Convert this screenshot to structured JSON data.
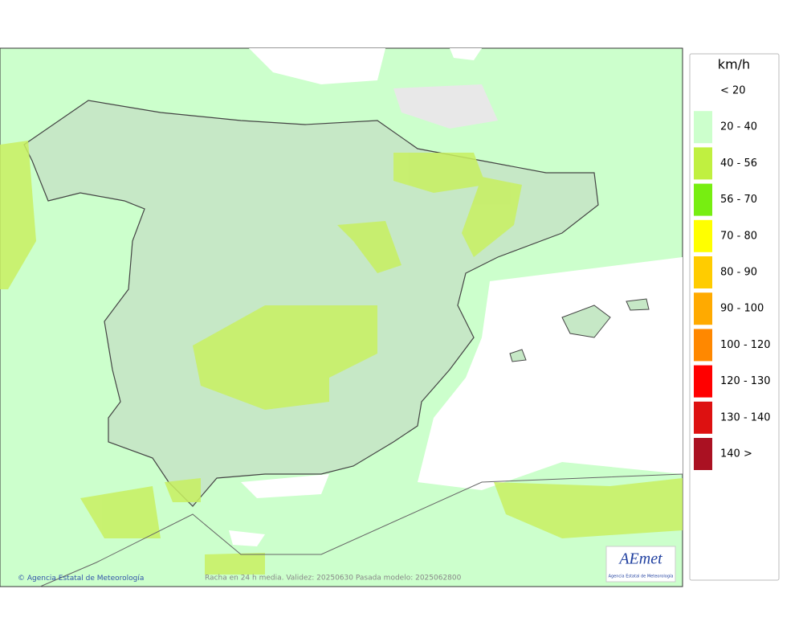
{
  "legend": {
    "title": "km/h",
    "items": [
      {
        "label": "< 20",
        "color": "#ffffff"
      },
      {
        "label": "20 - 40",
        "color": "#ccffcc"
      },
      {
        "label": "40 - 56",
        "color": "#c0f040"
      },
      {
        "label": "56 - 70",
        "color": "#77ee11"
      },
      {
        "label": "70 - 80",
        "color": "#ffff00"
      },
      {
        "label": "80 - 90",
        "color": "#ffcc00"
      },
      {
        "label": "90 - 100",
        "color": "#ffaa00"
      },
      {
        "label": "100 - 120",
        "color": "#ff8800"
      },
      {
        "label": "120 - 130",
        "color": "#ff0000"
      },
      {
        "label": "130 - 140",
        "color": "#dd1111"
      },
      {
        "label": "140 >",
        "color": "#aa1122"
      }
    ]
  },
  "footer": {
    "credit": "Agencia Estatal de Meteorología",
    "caption": "Racha en 24 h media. Validez: 20250630 Pasada modelo: 2025062800"
  },
  "logo": {
    "name": "AEmet",
    "subtitle": "Agencia Estatal de Meteorología"
  }
}
